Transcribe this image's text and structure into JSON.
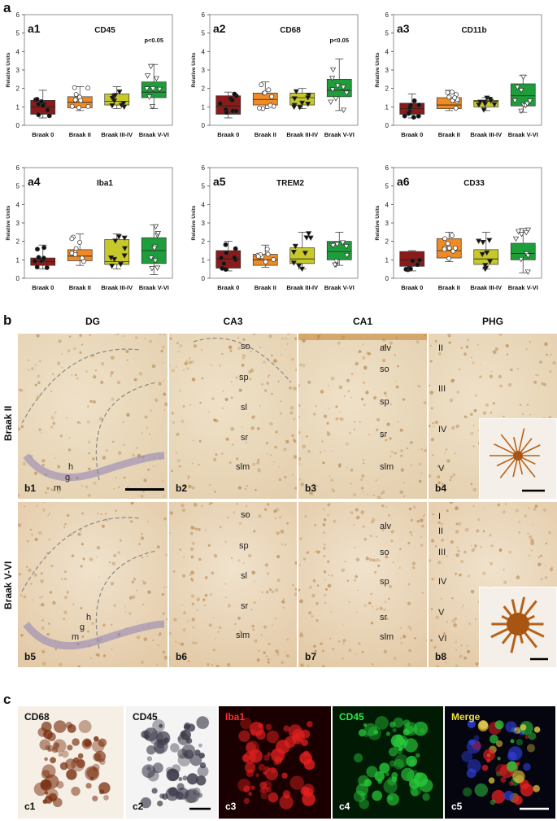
{
  "panel_labels": {
    "a": "a",
    "b": "b",
    "c": "c"
  },
  "chart_data": [
    {
      "id": "a1",
      "title": "CD45",
      "type": "box",
      "ylabel": "Relative Units",
      "ylim": [
        0,
        6
      ],
      "categories": [
        "Braak 0",
        "Braak II",
        "Braak III-IV",
        "Braak V-VI"
      ],
      "annotation": "p<0.05",
      "boxes": [
        {
          "q1": 0.6,
          "median": 1.0,
          "q3": 1.35
        },
        {
          "q1": 0.95,
          "median": 1.25,
          "q3": 1.55
        },
        {
          "q1": 1.1,
          "median": 1.3,
          "q3": 1.7
        },
        {
          "q1": 1.5,
          "median": 1.8,
          "q3": 2.35
        }
      ],
      "whiskers": [
        [
          0.4,
          1.9
        ],
        [
          0.8,
          2.1
        ],
        [
          0.9,
          2.1
        ],
        [
          0.9,
          3.3
        ]
      ],
      "colors": [
        "#8b1a1a",
        "#f08a24",
        "#c7c92a",
        "#1e9e3a"
      ]
    },
    {
      "id": "a2",
      "title": "CD68",
      "type": "box",
      "ylabel": "Relative Units",
      "ylim": [
        0,
        6
      ],
      "categories": [
        "Braak 0",
        "Braak II",
        "Braak III-IV",
        "Braak V-VI"
      ],
      "annotation": "p<0.05",
      "boxes": [
        {
          "q1": 0.6,
          "median": 1.05,
          "q3": 1.6
        },
        {
          "q1": 1.1,
          "median": 1.4,
          "q3": 1.75
        },
        {
          "q1": 1.1,
          "median": 1.5,
          "q3": 1.75
        },
        {
          "q1": 1.55,
          "median": 1.9,
          "q3": 2.5
        }
      ],
      "whiskers": [
        [
          0.4,
          1.8
        ],
        [
          0.9,
          2.35
        ],
        [
          0.9,
          2.0
        ],
        [
          0.8,
          3.6
        ]
      ],
      "colors": [
        "#8b1a1a",
        "#f08a24",
        "#c7c92a",
        "#1e9e3a"
      ]
    },
    {
      "id": "a3",
      "title": "CD11b",
      "type": "box",
      "ylabel": "Relative Units",
      "ylim": [
        0,
        6
      ],
      "categories": [
        "Braak 0",
        "Braak II",
        "Braak III-IV",
        "Braak V-VI"
      ],
      "annotation": "",
      "boxes": [
        {
          "q1": 0.6,
          "median": 0.9,
          "q3": 1.2
        },
        {
          "q1": 0.9,
          "median": 1.1,
          "q3": 1.5
        },
        {
          "q1": 1.0,
          "median": 1.3,
          "q3": 1.35
        },
        {
          "q1": 1.05,
          "median": 1.6,
          "q3": 2.25
        }
      ],
      "whiskers": [
        [
          0.4,
          1.7
        ],
        [
          0.8,
          1.9
        ],
        [
          0.8,
          1.5
        ],
        [
          0.7,
          2.7
        ]
      ],
      "colors": [
        "#8b1a1a",
        "#f08a24",
        "#c7c92a",
        "#1e9e3a"
      ]
    },
    {
      "id": "a4",
      "title": "Iba1",
      "type": "box",
      "ylabel": "Relative Units",
      "ylim": [
        0,
        6
      ],
      "categories": [
        "Braak 0",
        "Braak II",
        "Braak III-IV",
        "Braak V-VI"
      ],
      "annotation": "",
      "boxes": [
        {
          "q1": 0.7,
          "median": 0.9,
          "q3": 1.1
        },
        {
          "q1": 0.95,
          "median": 1.2,
          "q3": 1.55
        },
        {
          "q1": 0.75,
          "median": 0.9,
          "q3": 2.1
        },
        {
          "q1": 0.8,
          "median": 1.5,
          "q3": 2.2
        }
      ],
      "whiskers": [
        [
          0.5,
          1.8
        ],
        [
          0.7,
          2.4
        ],
        [
          0.5,
          2.4
        ],
        [
          0.2,
          2.9
        ]
      ],
      "colors": [
        "#8b1a1a",
        "#f08a24",
        "#c7c92a",
        "#1e9e3a"
      ]
    },
    {
      "id": "a5",
      "title": "TREM2",
      "type": "box",
      "ylabel": "Relative Units",
      "ylim": [
        0,
        6
      ],
      "categories": [
        "Braak 0",
        "Braak II",
        "Braak III-IV",
        "Braak V-VI"
      ],
      "annotation": "",
      "boxes": [
        {
          "q1": 0.55,
          "median": 1.05,
          "q3": 1.5
        },
        {
          "q1": 0.7,
          "median": 1.0,
          "q3": 1.3
        },
        {
          "q1": 0.8,
          "median": 1.05,
          "q3": 1.65
        },
        {
          "q1": 1.0,
          "median": 1.45,
          "q3": 2.0
        }
      ],
      "whiskers": [
        [
          0.4,
          2.0
        ],
        [
          0.6,
          1.8
        ],
        [
          0.5,
          2.5
        ],
        [
          0.7,
          2.5
        ]
      ],
      "colors": [
        "#8b1a1a",
        "#f08a24",
        "#c7c92a",
        "#1e9e3a"
      ]
    },
    {
      "id": "a6",
      "title": "CD33",
      "type": "box",
      "ylabel": "Relative Units",
      "ylim": [
        0,
        6
      ],
      "categories": [
        "Braak 0",
        "Braak II",
        "Braak III-IV",
        "Braak V-VI"
      ],
      "annotation": "",
      "boxes": [
        {
          "q1": 0.65,
          "median": 1.0,
          "q3": 1.45
        },
        {
          "q1": 1.1,
          "median": 1.5,
          "q3": 2.15
        },
        {
          "q1": 0.75,
          "median": 1.05,
          "q3": 1.55
        },
        {
          "q1": 1.0,
          "median": 1.35,
          "q3": 1.9
        }
      ],
      "whiskers": [
        [
          0.4,
          1.5
        ],
        [
          0.9,
          2.5
        ],
        [
          0.5,
          2.5
        ],
        [
          0.3,
          2.7
        ]
      ],
      "colors": [
        "#8b1a1a",
        "#f08a24",
        "#c7c92a",
        "#1e9e3a"
      ]
    }
  ],
  "yticks": [
    "0",
    "1",
    "2",
    "3",
    "4",
    "5",
    "6"
  ],
  "section_b": {
    "columns": [
      "DG",
      "CA3",
      "CA1",
      "PHG"
    ],
    "rows": [
      "Braak II",
      "Braak V-VI"
    ],
    "tiles": [
      {
        "label": "b1",
        "layers": [
          {
            "t": "h"
          },
          {
            "t": "g"
          },
          {
            "t": "m"
          }
        ]
      },
      {
        "label": "b2",
        "layers": [
          {
            "t": "so"
          },
          {
            "t": "sp"
          },
          {
            "t": "sl"
          },
          {
            "t": "sr"
          },
          {
            "t": "slm"
          }
        ]
      },
      {
        "label": "b3",
        "layers": [
          {
            "t": "alv"
          },
          {
            "t": "so"
          },
          {
            "t": "sp"
          },
          {
            "t": "sr"
          },
          {
            "t": "slm"
          }
        ]
      },
      {
        "label": "b4",
        "layers": [
          {
            "t": "II"
          },
          {
            "t": "III"
          },
          {
            "t": "IV"
          },
          {
            "t": "V"
          }
        ]
      },
      {
        "label": "b5",
        "layers": [
          {
            "t": "h"
          },
          {
            "t": "g"
          },
          {
            "t": "m"
          }
        ]
      },
      {
        "label": "b6",
        "layers": [
          {
            "t": "so"
          },
          {
            "t": "sp"
          },
          {
            "t": "sl"
          },
          {
            "t": "sr"
          },
          {
            "t": "slm"
          }
        ]
      },
      {
        "label": "b7",
        "layers": [
          {
            "t": "alv"
          },
          {
            "t": "so"
          },
          {
            "t": "sp"
          },
          {
            "t": "sr"
          },
          {
            "t": "slm"
          }
        ]
      },
      {
        "label": "b8",
        "layers": [
          {
            "t": "I"
          },
          {
            "t": "II"
          },
          {
            "t": "III"
          },
          {
            "t": "IV"
          },
          {
            "t": "V"
          },
          {
            "t": "VI"
          }
        ]
      }
    ]
  },
  "section_c": {
    "tiles": [
      {
        "label": "c1",
        "title": "CD68"
      },
      {
        "label": "c2",
        "title": "CD45"
      },
      {
        "label": "c3",
        "title": "Iba1"
      },
      {
        "label": "c4",
        "title": "CD45"
      },
      {
        "label": "c5",
        "title": "Merge"
      }
    ]
  }
}
